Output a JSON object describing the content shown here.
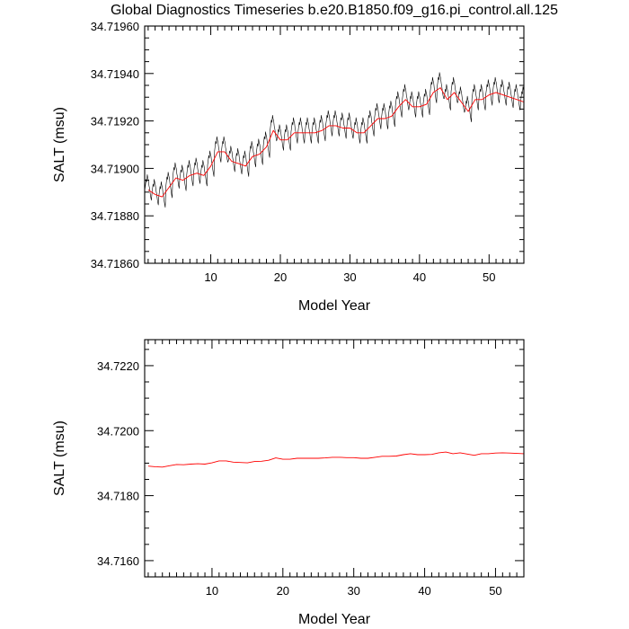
{
  "title": "Global Diagnostics Timeseries b.e20.B1850.f09_g16.pi_control.all.125",
  "chart_data": [
    {
      "type": "line",
      "xlabel": "Model Year",
      "ylabel": "SALT (msu)",
      "xlim": [
        0.5,
        55
      ],
      "ylim": [
        34.7186,
        34.7196
      ],
      "xticks": [
        "10",
        "20",
        "30",
        "40",
        "50"
      ],
      "xtick_values": [
        10,
        20,
        30,
        40,
        50
      ],
      "yticks": [
        "34.71860",
        "34.71880",
        "34.71900",
        "34.71920",
        "34.71940",
        "34.71960"
      ],
      "ytick_values": [
        34.7186,
        34.7188,
        34.719,
        34.7192,
        34.7194,
        34.7196
      ],
      "series": [
        {
          "color": "#000000",
          "style": "monthly",
          "seasonal_amplitude_by_year": [
            0.00016,
            0.00016,
            0.00016,
            0.00016,
            0.00016,
            0.00016,
            0.00016,
            0.00016,
            0.00016,
            0.00016,
            0.00016,
            0.00016,
            0.00016,
            0.00016,
            0.00016,
            0.00016,
            0.00016,
            0.00016,
            0.00016,
            0.00016,
            0.00016,
            0.00016,
            0.00016,
            0.00016,
            0.00016,
            0.00016,
            0.00016,
            0.00016,
            0.00016,
            0.00016,
            0.00016,
            0.00016,
            0.00016,
            0.00016,
            0.00016,
            0.00016,
            0.00016,
            0.00016,
            0.00016,
            0.00016,
            0.00016,
            0.00016,
            0.00016,
            0.00016,
            0.00016,
            0.00016,
            0.00016,
            0.00016,
            0.00016,
            0.00016,
            0.00016,
            0.00016,
            0.00016,
            0.00016,
            0.00016
          ]
        },
        {
          "color": "#ff0000",
          "style": "annual",
          "x": [
            1,
            2,
            3,
            4,
            5,
            6,
            7,
            8,
            9,
            10,
            11,
            12,
            13,
            14,
            15,
            16,
            17,
            18,
            19,
            20,
            21,
            22,
            23,
            24,
            25,
            26,
            27,
            28,
            29,
            30,
            31,
            32,
            33,
            34,
            35,
            36,
            37,
            38,
            39,
            40,
            41,
            42,
            43,
            44,
            45,
            46,
            47,
            48,
            49,
            50,
            51,
            52,
            53,
            54,
            55
          ],
          "y": [
            34.71891,
            34.71889,
            34.71888,
            34.71892,
            34.71896,
            34.71895,
            34.71897,
            34.71898,
            34.71897,
            34.71901,
            34.71907,
            34.71907,
            34.71903,
            34.71902,
            34.71901,
            34.71905,
            34.71906,
            34.71909,
            34.71916,
            34.71912,
            34.71912,
            34.71915,
            34.71915,
            34.71915,
            34.71915,
            34.71916,
            34.71918,
            34.71918,
            34.71917,
            34.71917,
            34.71915,
            34.71915,
            34.71918,
            34.71921,
            34.71921,
            34.71922,
            34.71926,
            34.71929,
            34.71926,
            34.71926,
            34.71927,
            34.71932,
            34.71934,
            34.71929,
            34.71932,
            34.71928,
            34.71924,
            34.71929,
            34.71929,
            34.71931,
            34.71932,
            34.71931,
            34.7193,
            34.71929,
            34.71928
          ]
        }
      ]
    },
    {
      "type": "line",
      "xlabel": "Model Year",
      "ylabel": "SALT (msu)",
      "xlim": [
        0.5,
        54
      ],
      "ylim": [
        34.7155,
        34.7228
      ],
      "xticks": [
        "10",
        "20",
        "30",
        "40",
        "50"
      ],
      "xtick_values": [
        10,
        20,
        30,
        40,
        50
      ],
      "yticks": [
        "34.7160",
        "34.7180",
        "34.7200",
        "34.7220"
      ],
      "ytick_values": [
        34.716,
        34.718,
        34.72,
        34.722
      ],
      "series": [
        {
          "color": "#ff0000",
          "style": "annual",
          "x": [
            1,
            2,
            3,
            4,
            5,
            6,
            7,
            8,
            9,
            10,
            11,
            12,
            13,
            14,
            15,
            16,
            17,
            18,
            19,
            20,
            21,
            22,
            23,
            24,
            25,
            26,
            27,
            28,
            29,
            30,
            31,
            32,
            33,
            34,
            35,
            36,
            37,
            38,
            39,
            40,
            41,
            42,
            43,
            44,
            45,
            46,
            47,
            48,
            49,
            50,
            51,
            52,
            53,
            54
          ],
          "y": [
            34.71891,
            34.71889,
            34.71888,
            34.71892,
            34.71896,
            34.71895,
            34.71897,
            34.71898,
            34.71897,
            34.71901,
            34.71907,
            34.71907,
            34.71903,
            34.71902,
            34.71901,
            34.71905,
            34.71906,
            34.71909,
            34.71916,
            34.71912,
            34.71912,
            34.71915,
            34.71915,
            34.71915,
            34.71915,
            34.71916,
            34.71918,
            34.71918,
            34.71917,
            34.71917,
            34.71915,
            34.71915,
            34.71918,
            34.71921,
            34.71921,
            34.71922,
            34.71926,
            34.71929,
            34.71926,
            34.71926,
            34.71927,
            34.71932,
            34.71934,
            34.71929,
            34.71932,
            34.71928,
            34.71924,
            34.71929,
            34.71929,
            34.71931,
            34.71932,
            34.71931,
            34.7193,
            34.71929
          ]
        }
      ]
    }
  ]
}
